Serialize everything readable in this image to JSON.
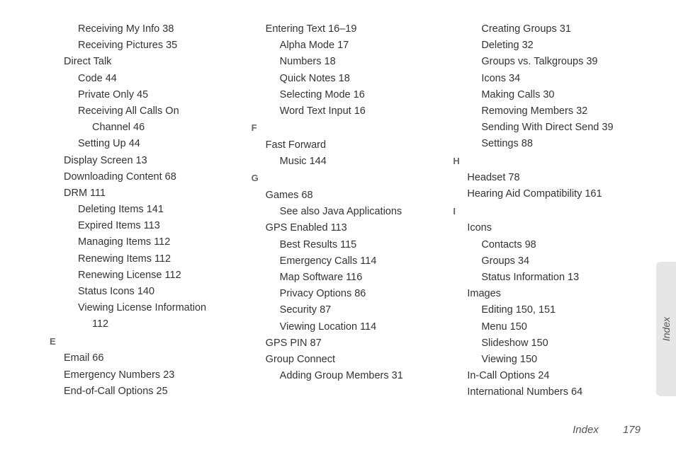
{
  "page_number": "179",
  "section_label": "Index",
  "side_tab_label": "Index",
  "columns": [
    {
      "items": [
        {
          "level": 1,
          "text": "Receiving My Info 38"
        },
        {
          "level": 1,
          "text": "Receiving Pictures 35"
        },
        {
          "level": 0,
          "text": "Direct Talk"
        },
        {
          "level": 1,
          "text": "Code 44"
        },
        {
          "level": 1,
          "text": "Private Only 45"
        },
        {
          "level": 1,
          "text": "Receiving All Calls On"
        },
        {
          "level": 2,
          "text": "Channel 46"
        },
        {
          "level": 1,
          "text": "Setting Up 44"
        },
        {
          "level": 0,
          "text": "Display Screen 13"
        },
        {
          "level": 0,
          "text": "Downloading Content 68"
        },
        {
          "level": 0,
          "text": "DRM 111"
        },
        {
          "level": 1,
          "text": "Deleting Items 141"
        },
        {
          "level": 1,
          "text": "Expired Items 113"
        },
        {
          "level": 1,
          "text": "Managing Items 112"
        },
        {
          "level": 1,
          "text": "Renewing Items 112"
        },
        {
          "level": 1,
          "text": "Renewing License 112"
        },
        {
          "level": 1,
          "text": "Status Icons 140"
        },
        {
          "level": 1,
          "text": "Viewing License Information"
        },
        {
          "level": 2,
          "text": "112"
        },
        {
          "letter": "E"
        },
        {
          "level": 0,
          "text": "Email 66"
        },
        {
          "level": 0,
          "text": "Emergency Numbers 23"
        },
        {
          "level": 0,
          "text": "End-of-Call Options 25"
        }
      ]
    },
    {
      "items": [
        {
          "level": 0,
          "text": "Entering Text 16–19"
        },
        {
          "level": 1,
          "text": "Alpha Mode 17"
        },
        {
          "level": 1,
          "text": "Numbers 18"
        },
        {
          "level": 1,
          "text": "Quick Notes 18"
        },
        {
          "level": 1,
          "text": "Selecting Mode 16"
        },
        {
          "level": 1,
          "text": "Word Text Input 16"
        },
        {
          "letter": "F"
        },
        {
          "level": 0,
          "text": "Fast Forward"
        },
        {
          "level": 1,
          "text": "Music 144"
        },
        {
          "letter": "G"
        },
        {
          "level": 0,
          "text": "Games 68"
        },
        {
          "level": 1,
          "text": "See also Java Applications"
        },
        {
          "level": 0,
          "text": "GPS Enabled 113"
        },
        {
          "level": 1,
          "text": "Best Results 115"
        },
        {
          "level": 1,
          "text": "Emergency Calls 114"
        },
        {
          "level": 1,
          "text": "Map Software 116"
        },
        {
          "level": 1,
          "text": "Privacy Options 86"
        },
        {
          "level": 1,
          "text": "Security 87"
        },
        {
          "level": 1,
          "text": "Viewing Location 114"
        },
        {
          "level": 0,
          "text": "GPS PIN 87"
        },
        {
          "level": 0,
          "text": "Group Connect"
        },
        {
          "level": 1,
          "text": "Adding Group Members 31"
        }
      ]
    },
    {
      "items": [
        {
          "level": 1,
          "text": "Creating Groups 31"
        },
        {
          "level": 1,
          "text": "Deleting 32"
        },
        {
          "level": 1,
          "text": "Groups vs. Talkgroups 39"
        },
        {
          "level": 1,
          "text": "Icons 34"
        },
        {
          "level": 1,
          "text": "Making Calls 30"
        },
        {
          "level": 1,
          "text": "Removing Members 32"
        },
        {
          "level": 1,
          "text": "Sending With Direct Send 39"
        },
        {
          "level": 1,
          "text": "Settings 88"
        },
        {
          "letter": "H"
        },
        {
          "level": 0,
          "text": "Headset 78"
        },
        {
          "level": 0,
          "text": "Hearing Aid Compatibility 161"
        },
        {
          "letter": "I"
        },
        {
          "level": 0,
          "text": "Icons"
        },
        {
          "level": 1,
          "text": "Contacts 98"
        },
        {
          "level": 1,
          "text": "Groups 34"
        },
        {
          "level": 1,
          "text": "Status Information 13"
        },
        {
          "level": 0,
          "text": "Images"
        },
        {
          "level": 1,
          "text": "Editing 150, 151"
        },
        {
          "level": 1,
          "text": "Menu 150"
        },
        {
          "level": 1,
          "text": "Slideshow 150"
        },
        {
          "level": 1,
          "text": "Viewing 150"
        },
        {
          "level": 0,
          "text": "In-Call Options 24"
        },
        {
          "level": 0,
          "text": "International Numbers 64"
        }
      ]
    }
  ]
}
